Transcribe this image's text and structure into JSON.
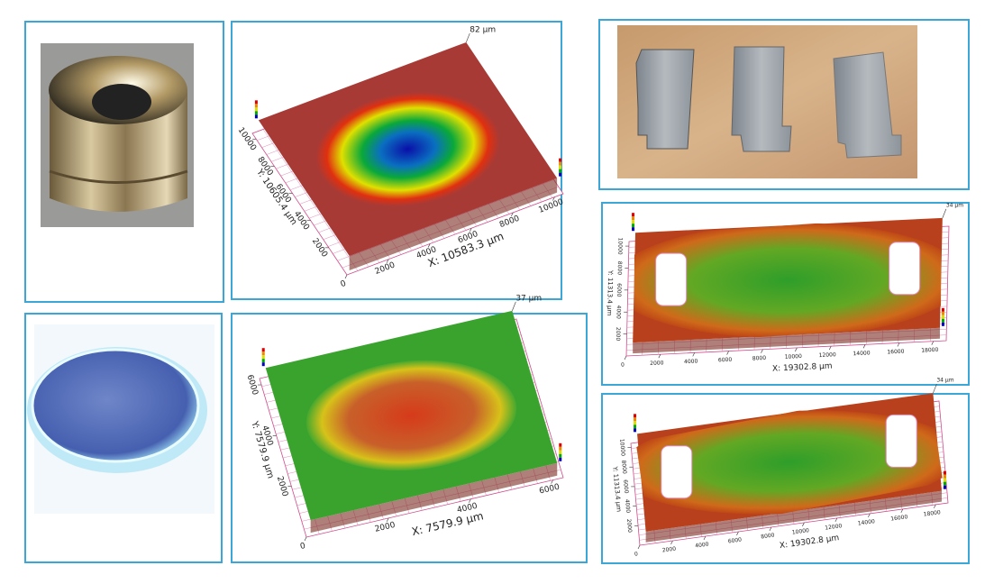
{
  "plots": [
    {
      "peak": "82 µm",
      "x_label": "X: 10583.3 µm",
      "y_label": "Y: 10605.4 µm",
      "x_ticks": [
        0,
        2000,
        4000,
        6000,
        8000,
        10000
      ],
      "y_ticks": [
        2000,
        4000,
        6000,
        8000,
        10000
      ]
    },
    {
      "peak": "37 µm",
      "x_label": "X: 7579.9 µm",
      "y_label": "Y: 7579.9 µm",
      "x_ticks": [
        0,
        2000,
        4000,
        6000
      ],
      "y_ticks": [
        2000,
        4000,
        6000
      ]
    },
    {
      "peak": "34 µm",
      "x_label": "X: 19302.8 µm",
      "y_label": "Y: 11313.4 µm",
      "x_ticks": [
        0,
        2000,
        4000,
        6000,
        8000,
        10000,
        12000,
        14000,
        16000,
        18000
      ],
      "y_ticks": [
        2000,
        4000,
        6000,
        8000,
        10000
      ]
    },
    {
      "peak": "34 µm",
      "x_label": "X: 19302.8 µm",
      "y_label": "Y: 11313.4 µm",
      "x_ticks": [
        0,
        2000,
        4000,
        6000,
        8000,
        10000,
        12000,
        14000,
        16000,
        18000
      ],
      "y_ticks": [
        2000,
        4000,
        6000,
        8000,
        10000
      ]
    }
  ]
}
